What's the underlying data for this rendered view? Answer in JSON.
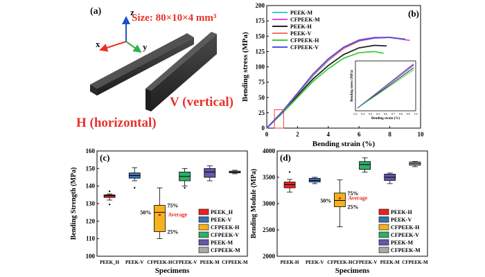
{
  "panel_a": {
    "label": "(a)",
    "size_text": "Size: 80×10×4 mm³",
    "axis_x": "x",
    "axis_y": "y",
    "axis_z": "z",
    "label_h": "H (horizontal)",
    "label_v": "V (vertical)",
    "colors": {
      "size": "#e8312a",
      "h": "#e8312a",
      "v": "#e8312a",
      "x_axis": "#e8312a",
      "y_axis": "#2db34a",
      "z_axis": "#2050c8"
    }
  },
  "chart_data": [
    {
      "panel": "(b)",
      "type": "line",
      "xlabel": "Bending strain (%)",
      "ylabel": "Bending stress (MPa)",
      "xlim": [
        0,
        10
      ],
      "ylim": [
        0,
        200
      ],
      "xticks": [
        0,
        2,
        4,
        6,
        8,
        10
      ],
      "yticks": [
        0,
        25,
        50,
        75,
        100,
        125,
        150,
        175,
        200
      ],
      "legend_position": "top-left",
      "series": [
        {
          "name": "PEEK-M",
          "color": "#3cc8e8",
          "x": [
            0,
            1,
            2,
            3,
            4,
            5,
            6,
            7,
            8,
            9.0
          ],
          "y": [
            0,
            25,
            55,
            85,
            110,
            130,
            142,
            147,
            148,
            145
          ]
        },
        {
          "name": "CFPEEK-M",
          "color": "#d94fd8",
          "x": [
            0,
            1,
            2,
            3,
            4,
            5,
            6,
            7,
            8,
            9.3
          ],
          "y": [
            0,
            27,
            57,
            87,
            112,
            132,
            144,
            148,
            148,
            143
          ]
        },
        {
          "name": "PEEK-H",
          "color": "#222222",
          "x": [
            0,
            1,
            2,
            3,
            4,
            5,
            6,
            7,
            7.8
          ],
          "y": [
            0,
            25,
            53,
            80,
            102,
            120,
            131,
            135,
            134
          ]
        },
        {
          "name": "PEEK-V",
          "color": "#f07070",
          "x": [
            0,
            1,
            2,
            3,
            4,
            5,
            6,
            7,
            8,
            8.4
          ],
          "y": [
            0,
            26,
            56,
            86,
            111,
            130,
            142,
            147,
            148,
            146
          ]
        },
        {
          "name": "CFPEEK-H",
          "color": "#3ccc3c",
          "x": [
            0,
            1,
            2,
            3,
            4,
            5,
            6,
            7,
            7.6
          ],
          "y": [
            0,
            24,
            50,
            76,
            97,
            114,
            123,
            125,
            122
          ]
        },
        {
          "name": "CFPEEK-V",
          "color": "#5050e0",
          "x": [
            0,
            1,
            2,
            3,
            4,
            5,
            6,
            7,
            8,
            9.0
          ],
          "y": [
            0,
            26,
            57,
            88,
            113,
            132,
            143,
            147,
            148,
            145
          ]
        }
      ],
      "inset": {
        "xlabel": "Bending strain (%)",
        "ylabel": "Bending stress (MPa)",
        "xticks": [
          "0.2",
          "0.3",
          "0.4",
          "0.5",
          "0.6",
          "0.7",
          "0.8",
          "0.9",
          "1.0"
        ]
      }
    },
    {
      "panel": "(c)",
      "type": "box",
      "xlabel": "Specimens",
      "ylabel": "Bending Strength (MPa)",
      "ylim": [
        100,
        160
      ],
      "yticks": [
        100,
        110,
        120,
        130,
        140,
        150,
        160
      ],
      "categories": [
        "PEEK_H",
        "PEEK-V",
        "CFPEEK-H",
        "CFPEEK-V",
        "PEEK-M",
        "CFPEEK-M"
      ],
      "boxes": [
        {
          "color": "#e8231f",
          "min": 132,
          "q1": 133.5,
          "median": 134.5,
          "q3": 135,
          "max": 135.5,
          "outliers": [
            137,
            129.5
          ]
        },
        {
          "color": "#3a6fb0",
          "min": 143,
          "q1": 144.5,
          "median": 146,
          "q3": 147.5,
          "max": 150.5,
          "outliers": [
            139
          ]
        },
        {
          "color": "#f5b21e",
          "min": 110,
          "q1": 114,
          "median": 125,
          "q3": 129,
          "max": 139,
          "mean": 123.5,
          "outliers": []
        },
        {
          "color": "#2fae6a",
          "min": 140,
          "q1": 143,
          "median": 145.5,
          "q3": 148,
          "max": 150,
          "outliers": [
            139
          ]
        },
        {
          "color": "#6a55a8",
          "min": 143,
          "q1": 145,
          "median": 148,
          "q3": 150,
          "max": 151.5,
          "outliers": []
        },
        {
          "color": "#a9a9a9",
          "min": 147,
          "q1": 147.5,
          "median": 148,
          "q3": 148.5,
          "max": 149,
          "outliers": []
        }
      ],
      "annotations": {
        "p75": "75%",
        "p50": "50%",
        "p25": "25%",
        "average": "Average"
      },
      "legend": [
        "PEEK_H",
        "PEEK-V",
        "CFPEEK-H",
        "CFPEEK-V",
        "PEEK-M",
        "CFPEEK-M"
      ]
    },
    {
      "panel": "(d)",
      "type": "box",
      "xlabel": "Specimens",
      "ylabel": "Bending Module (MPa)",
      "ylim": [
        2000,
        4000
      ],
      "yticks": [
        2000,
        2500,
        3000,
        3500,
        4000
      ],
      "categories": [
        "PEEK-H",
        "PEEK-V",
        "CFPEEK-H",
        "CFPEEK-V",
        "PEEK-M",
        "CFPEEK-M"
      ],
      "boxes": [
        {
          "color": "#e8231f",
          "min": 3220,
          "q1": 3300,
          "median": 3360,
          "q3": 3410,
          "max": 3460,
          "outliers": [
            3600
          ]
        },
        {
          "color": "#3a6fb0",
          "min": 3380,
          "q1": 3410,
          "median": 3440,
          "q3": 3480,
          "max": 3500,
          "outliers": []
        },
        {
          "color": "#f5b21e",
          "min": 2560,
          "q1": 2940,
          "median": 3060,
          "q3": 3200,
          "max": 3450,
          "mean": 3100,
          "outliers": []
        },
        {
          "color": "#2fae6a",
          "min": 3600,
          "q1": 3650,
          "median": 3740,
          "q3": 3800,
          "max": 3870,
          "outliers": []
        },
        {
          "color": "#6a55a8",
          "min": 3380,
          "q1": 3440,
          "median": 3500,
          "q3": 3560,
          "max": 3580,
          "outliers": []
        },
        {
          "color": "#a9a9a9",
          "min": 3700,
          "q1": 3730,
          "median": 3760,
          "q3": 3790,
          "max": 3800,
          "outliers": []
        }
      ],
      "annotations": {
        "p75": "75%",
        "p50": "50%",
        "p25": "25%",
        "average": "Average"
      },
      "legend": [
        "PEEK-H",
        "PEEK-V",
        "CFPEEK-H",
        "CFPEEK-V",
        "PEEK-M",
        "CFPEEK-M"
      ]
    }
  ]
}
